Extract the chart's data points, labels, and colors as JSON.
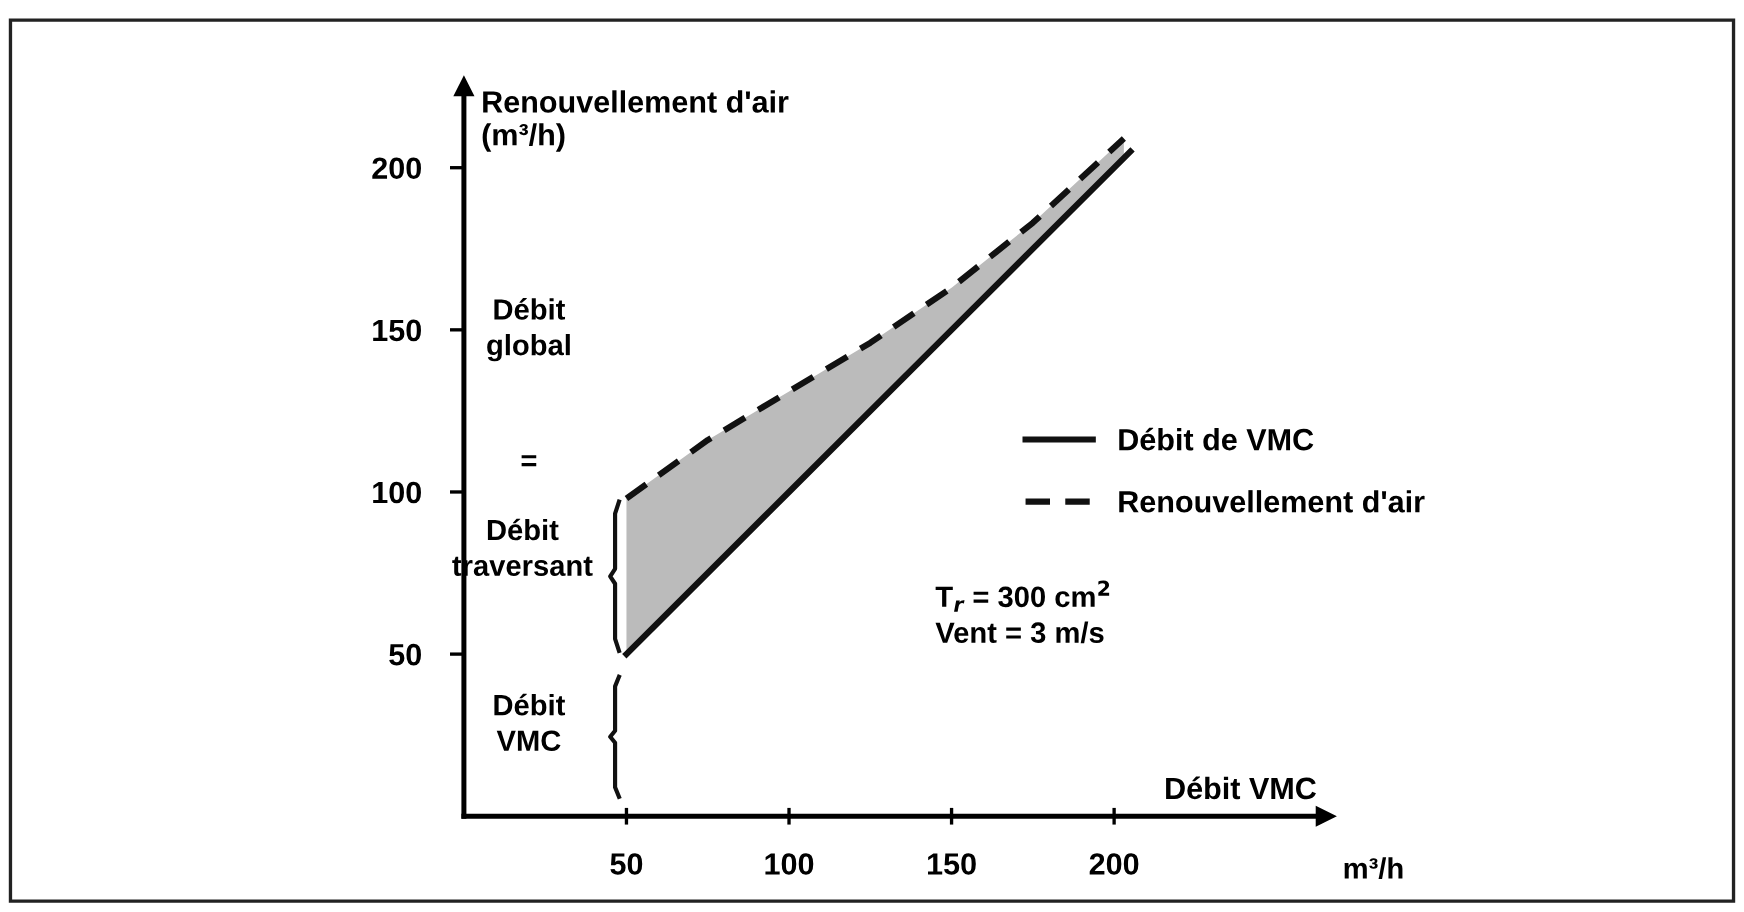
{
  "chart_data": {
    "type": "line",
    "xlabel": "Débit VMC",
    "ylabel": "Renouvellement d'air\n(m³/h)",
    "xlim": [
      0,
      265
    ],
    "ylim": [
      0,
      225
    ],
    "xticks": [
      50,
      100,
      150,
      200
    ],
    "yticks": [
      50,
      100,
      150,
      200
    ],
    "series": [
      {
        "name": "Débit de VMC",
        "color": "#111111",
        "line_style": "solid",
        "x": [
          50,
          100,
          150,
          205
        ],
        "values": [
          50,
          100,
          150,
          205
        ]
      },
      {
        "name": "Renouvellement d'air",
        "color": "#111111",
        "line_style": "dashed",
        "x": [
          50,
          75,
          100,
          125,
          150,
          175,
          203
        ],
        "values": [
          98,
          116,
          131,
          146,
          163,
          183,
          209
        ],
        "lower": [
          50,
          75,
          100,
          125,
          150,
          175,
          203
        ],
        "upper": [
          98,
          116,
          131,
          146,
          163,
          183,
          209
        ]
      }
    ],
    "annotations": [
      "Débit\nglobal",
      "=",
      "Débit\ntraversant",
      "Débit\nVMC",
      "T$_{r}$ = 300 cm$^{2}$\nVent = 3 m/s",
      "m³/h"
    ],
    "legend": "right",
    "grid": false
  }
}
